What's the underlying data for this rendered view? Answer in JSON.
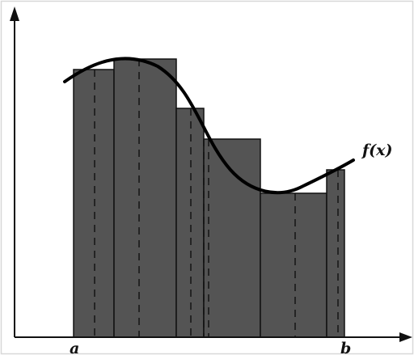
{
  "diagram": {
    "curve_label": "f(x)",
    "left_bound_label": "a",
    "right_bound_label": "b",
    "colors": {
      "background": "#ffffff",
      "frame": "#d8d8d8",
      "axis": "#111111",
      "bar_fill": "#545454",
      "bar_stroke": "#111111",
      "dashed_line": "#111111",
      "curve": "#000000"
    },
    "subintervals_count": 7,
    "approximation_kind": "Riemann sum with sample points inside each subinterval"
  }
}
